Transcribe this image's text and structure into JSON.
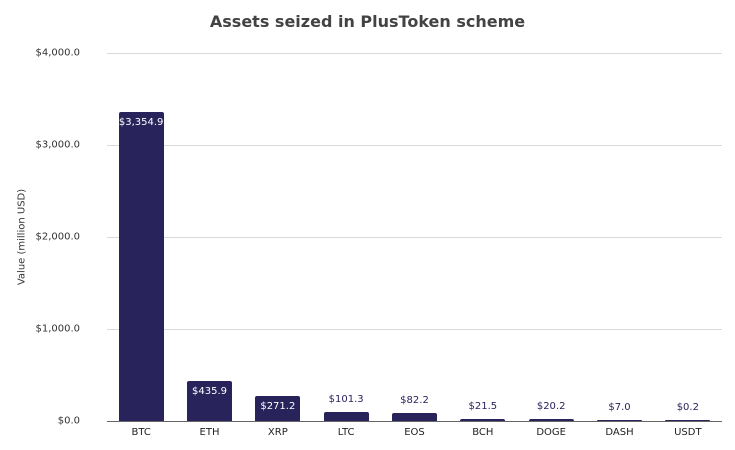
{
  "chart_data": {
    "type": "bar",
    "title": "Assets seized in PlusToken scheme",
    "xlabel": "",
    "ylabel": "Value (million USD)",
    "ylim": [
      0,
      4000
    ],
    "yticks": [
      "$0.0",
      "$1,000.0",
      "$2,000.0",
      "$3,000.0",
      "$4,000.0"
    ],
    "grid": true,
    "legend": null,
    "bar_color": "#29235c",
    "categories": [
      "BTC",
      "ETH",
      "XRP",
      "LTC",
      "EOS",
      "BCH",
      "DOGE",
      "DASH",
      "USDT"
    ],
    "values": [
      3354.9,
      435.9,
      271.2,
      101.3,
      82.2,
      21.5,
      20.2,
      7.0,
      0.2
    ],
    "data_labels": [
      "$3,354.9",
      "$435.9",
      "$271.2",
      "$101.3",
      "$82.2",
      "$21.5",
      "$20.2",
      "$7.0",
      "$0.2"
    ]
  }
}
